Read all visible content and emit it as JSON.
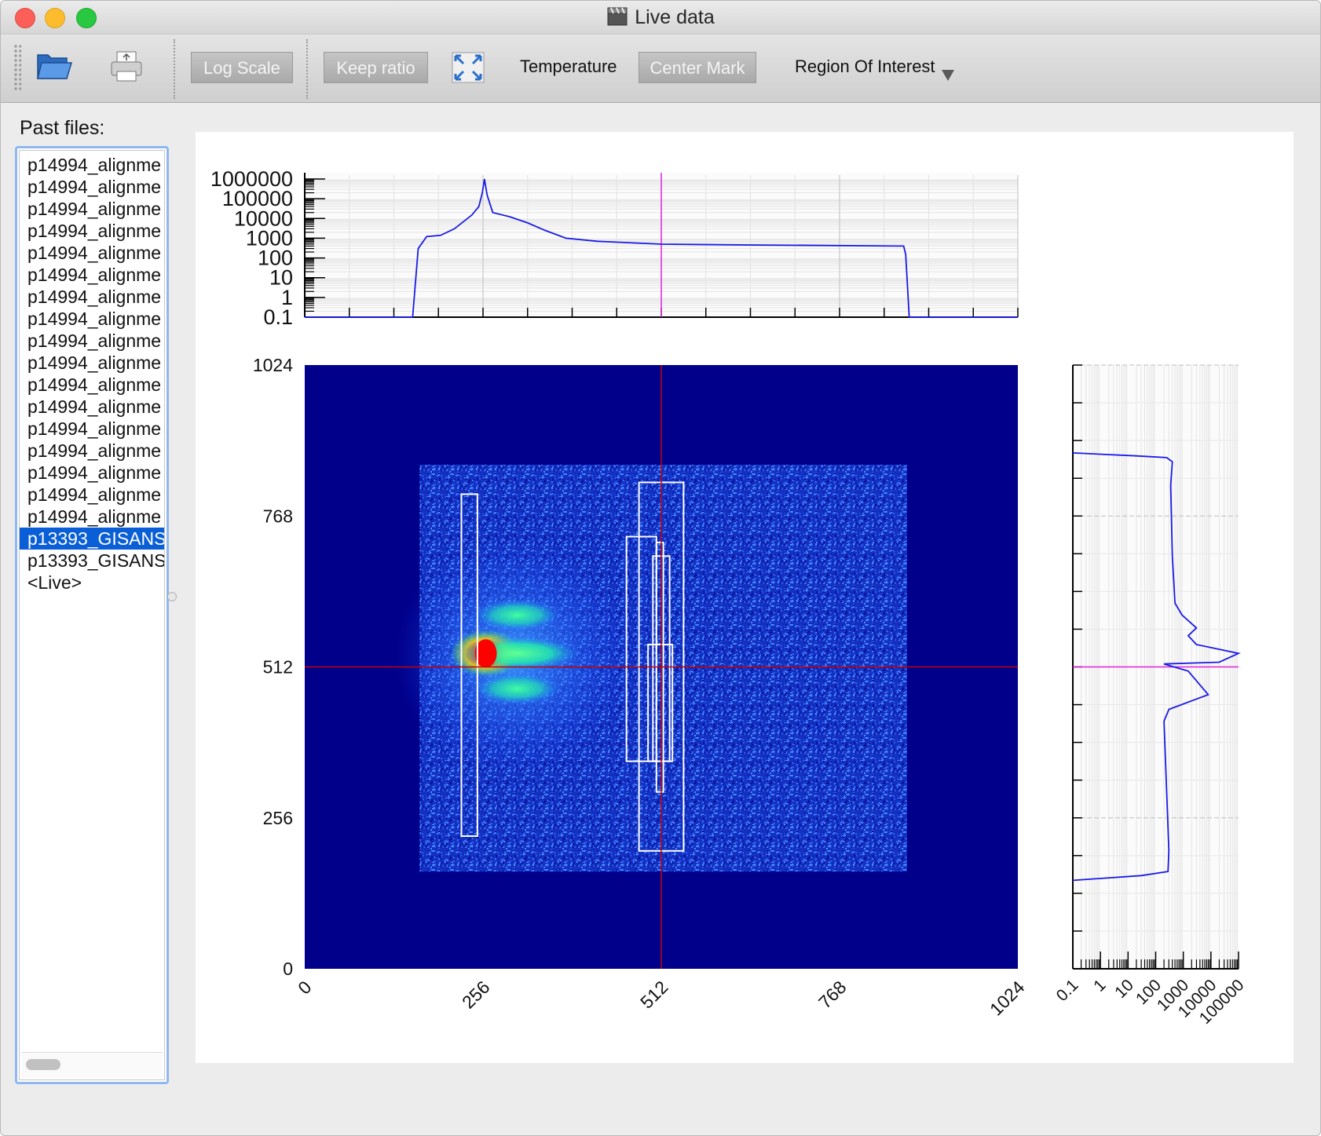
{
  "window": {
    "title": "Live data"
  },
  "toolbar": {
    "open_icon": "folder-open-icon",
    "print_icon": "printer-icon",
    "log_scale": "Log Scale",
    "keep_ratio": "Keep ratio",
    "fit_icon": "fit-to-window-icon",
    "temperature": "Temperature",
    "center_mark": "Center Mark",
    "roi": "Region Of Interest"
  },
  "sidebar": {
    "label": "Past files:",
    "files": [
      {
        "name": "p14994_alignme",
        "selected": false
      },
      {
        "name": "p14994_alignme",
        "selected": false
      },
      {
        "name": "p14994_alignme",
        "selected": false
      },
      {
        "name": "p14994_alignme",
        "selected": false
      },
      {
        "name": "p14994_alignme",
        "selected": false
      },
      {
        "name": "p14994_alignme",
        "selected": false
      },
      {
        "name": "p14994_alignme",
        "selected": false
      },
      {
        "name": "p14994_alignme",
        "selected": false
      },
      {
        "name": "p14994_alignme",
        "selected": false
      },
      {
        "name": "p14994_alignme",
        "selected": false
      },
      {
        "name": "p14994_alignme",
        "selected": false
      },
      {
        "name": "p14994_alignme",
        "selected": false
      },
      {
        "name": "p14994_alignme",
        "selected": false
      },
      {
        "name": "p14994_alignme",
        "selected": false
      },
      {
        "name": "p14994_alignme",
        "selected": false
      },
      {
        "name": "p14994_alignme",
        "selected": false
      },
      {
        "name": "p14994_alignme",
        "selected": false
      },
      {
        "name": "p13393_GISANS",
        "selected": true
      },
      {
        "name": "p13393_GISANS",
        "selected": false
      },
      {
        "name": "<Live>",
        "selected": false
      }
    ]
  },
  "colors": {
    "background_blue": "#00008b",
    "curve": "#1a1ae6",
    "center_mark_image": "#c0000a",
    "center_mark_profile": "#e020e0",
    "roi": "#ffffff"
  },
  "chart_data": [
    {
      "type": "heatmap",
      "name": "detector",
      "x_ticks": [
        "0",
        "256",
        "512",
        "768",
        "1024"
      ],
      "y_ticks": [
        "0",
        "256",
        "512",
        "768",
        "1024"
      ],
      "xlim": [
        0,
        1024
      ],
      "ylim": [
        0,
        1024
      ],
      "center_mark": {
        "x": 512,
        "y": 512
      },
      "active_region": {
        "x": [
          165,
          865
        ],
        "y": [
          165,
          855
        ]
      },
      "spots": [
        {
          "x": 260,
          "y": 535,
          "intensity": "max"
        },
        {
          "x": 305,
          "y": 535,
          "intensity": "high"
        },
        {
          "x": 305,
          "y": 600,
          "intensity": "medium"
        },
        {
          "x": 305,
          "y": 475,
          "intensity": "medium"
        }
      ],
      "roi_boxes": [
        {
          "x": [
            225,
            248
          ],
          "y": [
            225,
            805
          ]
        },
        {
          "x": [
            480,
            544
          ],
          "y": [
            200,
            825
          ]
        },
        {
          "x": [
            462,
            505
          ],
          "y": [
            352,
            733
          ]
        },
        {
          "x": [
            505,
            515
          ],
          "y": [
            300,
            723
          ]
        },
        {
          "x": [
            500,
            524
          ],
          "y": [
            352,
            700
          ]
        },
        {
          "x": [
            493,
            528
          ],
          "y": [
            352,
            550
          ]
        }
      ]
    },
    {
      "type": "line",
      "name": "horizontal-profile",
      "scale": "log",
      "y_ticks": [
        "1000000",
        "100000",
        "10000",
        "1000",
        "100",
        "10",
        "1",
        "0.1"
      ],
      "xlim": [
        0,
        1024
      ],
      "ylim": [
        0.1,
        1000000
      ],
      "points": [
        [
          0,
          0.1
        ],
        [
          155,
          0.1
        ],
        [
          163,
          300
        ],
        [
          175,
          1200
        ],
        [
          195,
          1400
        ],
        [
          215,
          3000
        ],
        [
          240,
          15000
        ],
        [
          250,
          40000
        ],
        [
          255,
          200000
        ],
        [
          258,
          1000000
        ],
        [
          262,
          150000
        ],
        [
          270,
          20000
        ],
        [
          295,
          12000
        ],
        [
          320,
          6000
        ],
        [
          345,
          2500
        ],
        [
          375,
          1000
        ],
        [
          420,
          700
        ],
        [
          512,
          500
        ],
        [
          650,
          450
        ],
        [
          860,
          400
        ],
        [
          863,
          150
        ],
        [
          868,
          0.1
        ],
        [
          1024,
          0.1
        ]
      ]
    },
    {
      "type": "line",
      "name": "vertical-profile",
      "scale": "log",
      "x_ticks": [
        "0.1",
        "1",
        "10",
        "100",
        "1000",
        "10000",
        "100000"
      ],
      "xlim": [
        0.1,
        100000
      ],
      "ylim": [
        0,
        1024
      ],
      "points": [
        [
          0.1,
          875
        ],
        [
          20,
          870
        ],
        [
          250,
          867
        ],
        [
          400,
          860
        ],
        [
          350,
          820
        ],
        [
          400,
          700
        ],
        [
          500,
          620
        ],
        [
          900,
          600
        ],
        [
          3000,
          578
        ],
        [
          1500,
          565
        ],
        [
          3000,
          550
        ],
        [
          100000,
          535
        ],
        [
          20000,
          520
        ],
        [
          200,
          517
        ],
        [
          1500,
          505
        ],
        [
          8000,
          465
        ],
        [
          300,
          440
        ],
        [
          200,
          420
        ],
        [
          250,
          300
        ],
        [
          300,
          200
        ],
        [
          280,
          165
        ],
        [
          30,
          158
        ],
        [
          0.1,
          150
        ]
      ]
    }
  ]
}
